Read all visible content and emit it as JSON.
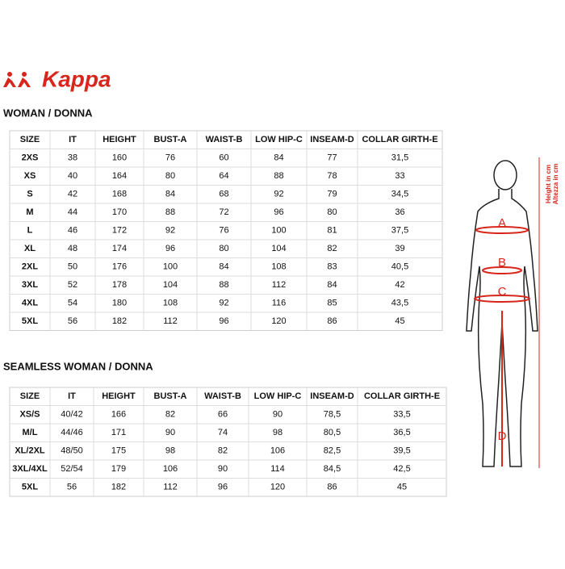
{
  "logo": "Kappa",
  "sections": [
    {
      "title": "WOMAN / DONNA",
      "columns": [
        "SIZE",
        "IT",
        "HEIGHT",
        "BUST-A",
        "WAIST-B",
        "LOW HIP-C",
        "INSEAM-D",
        "COLLAR GIRTH-E"
      ],
      "rows": [
        [
          "2XS",
          "38",
          "160",
          "76",
          "60",
          "84",
          "77",
          "31,5"
        ],
        [
          "XS",
          "40",
          "164",
          "80",
          "64",
          "88",
          "78",
          "33"
        ],
        [
          "S",
          "42",
          "168",
          "84",
          "68",
          "92",
          "79",
          "34,5"
        ],
        [
          "M",
          "44",
          "170",
          "88",
          "72",
          "96",
          "80",
          "36"
        ],
        [
          "L",
          "46",
          "172",
          "92",
          "76",
          "100",
          "81",
          "37,5"
        ],
        [
          "XL",
          "48",
          "174",
          "96",
          "80",
          "104",
          "82",
          "39"
        ],
        [
          "2XL",
          "50",
          "176",
          "100",
          "84",
          "108",
          "83",
          "40,5"
        ],
        [
          "3XL",
          "52",
          "178",
          "104",
          "88",
          "112",
          "84",
          "42"
        ],
        [
          "4XL",
          "54",
          "180",
          "108",
          "92",
          "116",
          "85",
          "43,5"
        ],
        [
          "5XL",
          "56",
          "182",
          "112",
          "96",
          "120",
          "86",
          "45"
        ]
      ]
    },
    {
      "title": "SEAMLESS WOMAN / DONNA",
      "columns": [
        "SIZE",
        "IT",
        "HEIGHT",
        "BUST-A",
        "WAIST-B",
        "LOW HIP-C",
        "INSEAM-D",
        "COLLAR GIRTH-E"
      ],
      "rows": [
        [
          "XS/S",
          "40/42",
          "166",
          "82",
          "66",
          "90",
          "78,5",
          "33,5"
        ],
        [
          "M/L",
          "44/46",
          "171",
          "90",
          "74",
          "98",
          "80,5",
          "36,5"
        ],
        [
          "XL/2XL",
          "48/50",
          "175",
          "98",
          "82",
          "106",
          "82,5",
          "39,5"
        ],
        [
          "3XL/4XL",
          "52/54",
          "179",
          "106",
          "90",
          "114",
          "84,5",
          "42,5"
        ],
        [
          "5XL",
          "56",
          "182",
          "112",
          "96",
          "120",
          "86",
          "45"
        ]
      ]
    }
  ],
  "figure": {
    "labels": [
      "A",
      "B",
      "C",
      "D"
    ],
    "height_label": "Height in cm",
    "height_label_it": "Altezza in cm"
  }
}
